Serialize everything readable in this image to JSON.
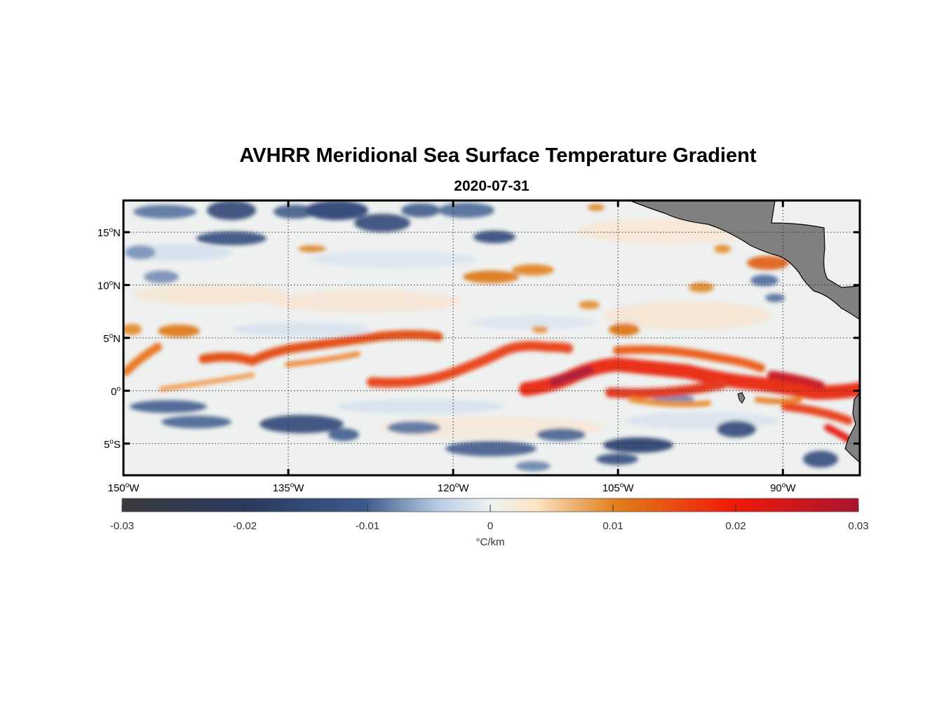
{
  "header": {
    "title": "AVHRR Meridional Sea Surface Temperature Gradient",
    "date": "2020-07-31"
  },
  "map": {
    "lon_range": [
      -150,
      -83
    ],
    "lat_range": [
      -8,
      18
    ],
    "x_ticks": [
      {
        "lon": -150,
        "num": "150",
        "hem": "W"
      },
      {
        "lon": -135,
        "num": "135",
        "hem": "W"
      },
      {
        "lon": -120,
        "num": "120",
        "hem": "W"
      },
      {
        "lon": -105,
        "num": "105",
        "hem": "W"
      },
      {
        "lon": -90,
        "num": "90",
        "hem": "W"
      }
    ],
    "y_ticks": [
      {
        "lat": 15,
        "num": "15",
        "hem": "N"
      },
      {
        "lat": 10,
        "num": "10",
        "hem": "N"
      },
      {
        "lat": 5,
        "num": "5",
        "hem": "N"
      },
      {
        "lat": 0,
        "num": "0",
        "hem": ""
      },
      {
        "lat": -5,
        "num": "5",
        "hem": "S"
      }
    ],
    "gridlines": "dotted",
    "land_color": "#808080"
  },
  "colorbar": {
    "min": -0.03,
    "max": 0.03,
    "ticks": [
      "-0.03",
      "-0.02",
      "-0.01",
      "0",
      "0.01",
      "0.02",
      "0.03"
    ],
    "units": "°C/km",
    "colors": [
      "#3a3a3c",
      "#2a3a5e",
      "#3d5a8a",
      "#b8cde3",
      "#eef1f1",
      "#fbe6c8",
      "#e07e1a",
      "#f01a0a",
      "#a8152f"
    ]
  }
}
